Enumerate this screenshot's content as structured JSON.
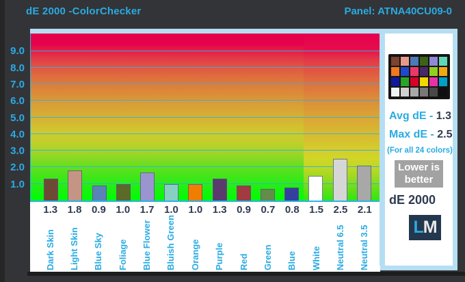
{
  "header": {
    "title": "dE 2000 -ColorChecker",
    "panel_label": "Panel: ATNA40CU09-0"
  },
  "chart_data": {
    "type": "bar",
    "title": "dE 2000 -ColorChecker",
    "categories": [
      "Dark Skin",
      "Light Skin",
      "Blue Sky",
      "Foliage",
      "Blue Flower",
      "Bluish Green",
      "Orange",
      "Purple",
      "Red",
      "Green",
      "Blue",
      "White",
      "Neutral 6.5",
      "Neutral 3.5"
    ],
    "values": [
      1.3,
      1.8,
      0.9,
      1.0,
      1.7,
      1.0,
      1.0,
      1.3,
      0.9,
      0.7,
      0.8,
      1.5,
      2.5,
      2.1
    ],
    "bar_colors": [
      "#6e4a36",
      "#c49584",
      "#5b82b6",
      "#5b6a28",
      "#9a95d0",
      "#86d0c2",
      "#f07d00",
      "#5b3a6d",
      "#a03b42",
      "#648c4a",
      "#35409e",
      "#ffffff",
      "#d6d6d6",
      "#a8a8a8"
    ],
    "xlabel": "",
    "ylabel": "dE 2000",
    "ylim": [
      0,
      10.05
    ],
    "yticks": [
      1,
      2,
      3,
      4,
      5,
      6,
      7,
      8,
      9
    ],
    "grid": true,
    "legend_position": "none",
    "highlight_section_start_index": 11,
    "background": "gradient green(good, bottom) to red(bad, top); right section (White/Neutrals) shifted scale"
  },
  "sidebar": {
    "avg_label": "Avg dE - ",
    "avg_value": "1.3",
    "max_label": "Max dE - ",
    "max_value": "2.5",
    "note": "(For all 24 colors)",
    "badge_line1": "Lower is",
    "badge_line2": "better",
    "footer": "dE 2000",
    "logo_letter1": "L",
    "logo_letter2": "M",
    "colorchecker_rows": [
      [
        "#7a4430",
        "#e89a88",
        "#4a7ab8",
        "#3e6218",
        "#9088d8",
        "#60d8b8"
      ],
      [
        "#f07820",
        "#2048c8",
        "#ea3868",
        "#48286a",
        "#90d020",
        "#f0a810"
      ],
      [
        "#1018a0",
        "#28a628",
        "#d80028",
        "#f0d800",
        "#e830a8",
        "#00a0c8"
      ],
      [
        "#f2f2f2",
        "#d0d0d0",
        "#a8a8a8",
        "#787878",
        "#484848",
        "#101010"
      ]
    ]
  },
  "colors": {
    "accent_cyan": "#29abe2",
    "navy_text": "#2f3b50",
    "panel_border_blue": "#b5def3",
    "gridline_cyan": "#2cb3e6",
    "badge_gray": "#a2a2a2",
    "logo_navy": "#23374e",
    "background_dark": "#333437"
  }
}
